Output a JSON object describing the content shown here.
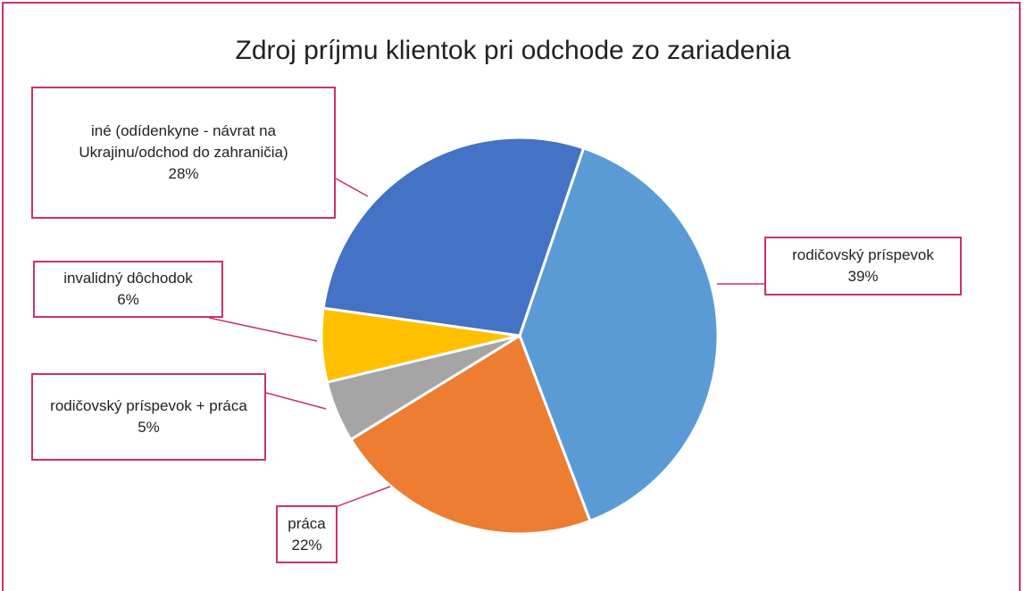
{
  "chart_data": {
    "type": "pie",
    "title": "Zdroj príjmu klientok pri odchode zo zariadenia",
    "categories": [
      "rodičovský príspevok",
      "práca",
      "rodičovský príspevok + práca",
      "invalidný dôchodok",
      "iné (odídenkyne - návrat na Ukrajinu/odchod do zahraničia)"
    ],
    "values": [
      39,
      22,
      5,
      6,
      28
    ],
    "value_labels": [
      "39%",
      "22%",
      "5%",
      "6%",
      "28%"
    ],
    "colors": [
      "#5b9bd5",
      "#ed7d31",
      "#a5a5a5",
      "#ffc000",
      "#4472c4"
    ]
  }
}
